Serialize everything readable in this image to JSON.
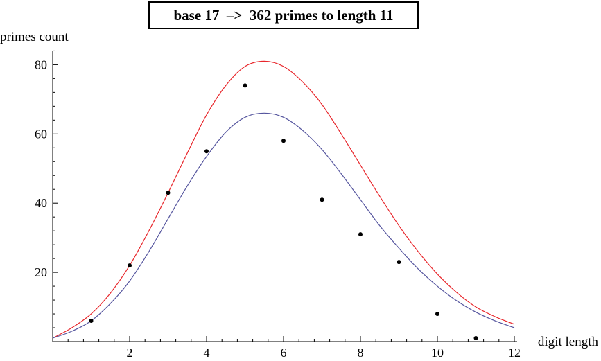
{
  "chart_data": {
    "type": "scatter",
    "title": "base 17  –>  362 primes to length 11",
    "xlabel": "digit length",
    "ylabel": "primes count",
    "xlim": [
      0,
      12
    ],
    "ylim": [
      0,
      84
    ],
    "x_ticks": [
      2,
      4,
      6,
      8,
      10,
      12
    ],
    "y_ticks": [
      20,
      40,
      60,
      80
    ],
    "grid": false,
    "series": [
      {
        "type": "scatter",
        "color": "#000000",
        "x": [
          1,
          2,
          3,
          4,
          5,
          6,
          7,
          8,
          9,
          10,
          11
        ],
        "y": [
          6,
          22,
          43,
          55,
          74,
          58,
          41,
          31,
          23,
          8,
          1
        ]
      },
      {
        "type": "line",
        "color": "#e8262b",
        "x": [
          0,
          0.5,
          1,
          1.5,
          2,
          2.5,
          3,
          3.5,
          4,
          4.5,
          5,
          5.5,
          6,
          6.5,
          7,
          7.5,
          8,
          8.5,
          9,
          9.5,
          10,
          10.5,
          11,
          11.5,
          12
        ],
        "y": [
          1,
          4,
          8,
          14,
          22,
          32,
          43,
          54.5,
          65.5,
          74,
          79.5,
          81,
          79.5,
          75,
          68.5,
          60,
          51,
          42,
          33.5,
          26,
          19.5,
          14.2,
          10,
          7.2,
          5
        ]
      },
      {
        "type": "line",
        "color": "#55559e",
        "x": [
          0,
          0.5,
          1,
          1.5,
          2,
          2.5,
          3,
          3.5,
          4,
          4.5,
          5,
          5.5,
          6,
          6.5,
          7,
          7.5,
          8,
          8.5,
          9,
          9.5,
          10,
          10.5,
          11,
          11.5,
          12
        ],
        "y": [
          1,
          3,
          6,
          11,
          17.5,
          26,
          35.5,
          45,
          53.5,
          60.5,
          64.8,
          66,
          64.8,
          61,
          55.5,
          48.5,
          41,
          33.5,
          27,
          21,
          16,
          11.8,
          8.5,
          6,
          4
        ]
      }
    ]
  }
}
